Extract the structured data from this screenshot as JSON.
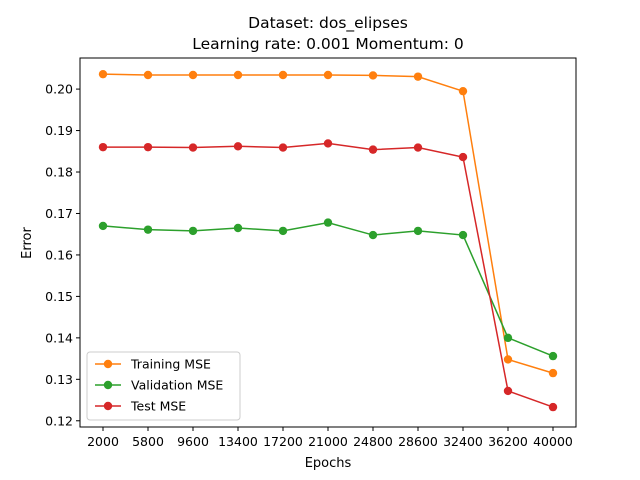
{
  "chart_data": {
    "type": "line",
    "title": "Dataset: dos_elipses",
    "subtitle": "Learning rate: 0.001  Momentum: 0",
    "xlabel": "Epochs",
    "ylabel": "Error",
    "categories": [
      "2000",
      "5800",
      "9600",
      "13400",
      "17200",
      "21000",
      "24800",
      "28600",
      "32400",
      "36200",
      "40000"
    ],
    "ylim": [
      0.1185,
      0.2075
    ],
    "yticks": [
      "0.12",
      "0.13",
      "0.14",
      "0.15",
      "0.16",
      "0.17",
      "0.18",
      "0.19",
      "0.20"
    ],
    "ytick_values": [
      0.12,
      0.13,
      0.14,
      0.15,
      0.16,
      0.17,
      0.18,
      0.19,
      0.2
    ],
    "grid": false,
    "legend_position": "bottom-left",
    "series": [
      {
        "name": "Training MSE",
        "color": "#ff7f0e",
        "values": [
          0.2036,
          0.2034,
          0.2034,
          0.2034,
          0.2034,
          0.2034,
          0.2033,
          0.203,
          0.1995,
          0.1348,
          0.1315
        ]
      },
      {
        "name": "Validation MSE",
        "color": "#2ca02c",
        "values": [
          0.167,
          0.1661,
          0.1658,
          0.1665,
          0.1658,
          0.1678,
          0.1648,
          0.1658,
          0.1648,
          0.14,
          0.1356
        ]
      },
      {
        "name": "Test MSE",
        "color": "#d62728",
        "values": [
          0.186,
          0.186,
          0.1859,
          0.1862,
          0.1859,
          0.1869,
          0.1854,
          0.1859,
          0.1836,
          0.1272,
          0.1233
        ]
      }
    ]
  }
}
